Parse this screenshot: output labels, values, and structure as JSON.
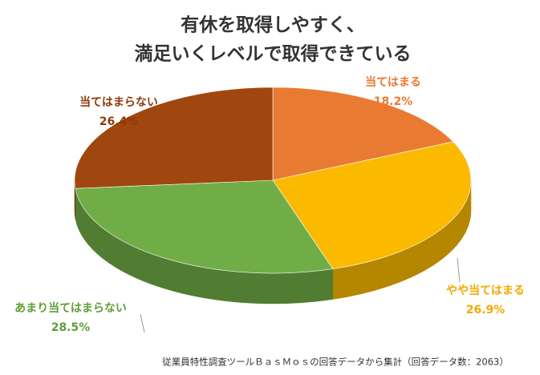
{
  "chart_data": {
    "type": "pie3d",
    "title_lines": [
      "有休を取得しやすく、",
      "満足いくレベルで取得できている"
    ],
    "categories": [
      "当てはまる",
      "やや当てはまる",
      "あまり当てはまらない",
      "当てはまらない"
    ],
    "values": [
      18.2,
      26.9,
      28.5,
      26.4
    ],
    "value_labels": [
      "18.2%",
      "26.9%",
      "28.5%",
      "26.4%"
    ],
    "colors": [
      "#E97A32",
      "#FBBA00",
      "#70AD47",
      "#A0470F"
    ],
    "note": "従業員特性調査ツールＢａｓＭｏｓの回答データから集計（回答データ数：2063）"
  }
}
